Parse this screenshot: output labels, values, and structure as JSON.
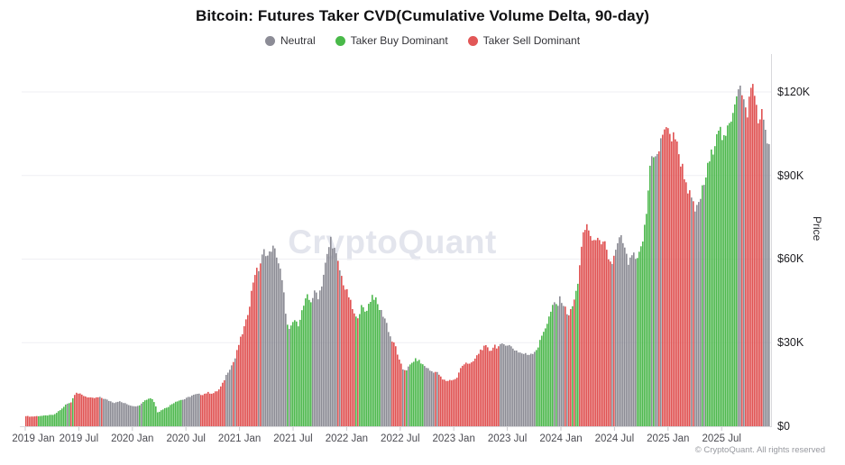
{
  "title": "Bitcoin: Futures Taker CVD(Cumulative Volume Delta, 90-day)",
  "watermark": "CryptoQuant",
  "copyright": "© CryptoQuant. All rights reserved",
  "legend": [
    {
      "label": "Neutral",
      "color": "#8c8c96"
    },
    {
      "label": "Taker Buy Dominant",
      "color": "#49b949"
    },
    {
      "label": "Taker Sell Dominant",
      "color": "#e25757"
    }
  ],
  "y_axis": {
    "label": "Price",
    "tick_labels": [
      "$0",
      "$30K",
      "$60K",
      "$90K",
      "$120K"
    ],
    "tick_values_k": [
      0,
      30,
      60,
      90,
      120
    ],
    "range_k": [
      0,
      133
    ]
  },
  "x_axis": {
    "tick_labels": [
      "2019 Jan",
      "2019 Jul",
      "2020 Jan",
      "2020 Jul",
      "2021 Jan",
      "2021 Jul",
      "2022 Jan",
      "2022 Jul",
      "2023 Jan",
      "2023 Jul",
      "2024 Jan",
      "2024 Jul",
      "2025 Jan",
      "2025 Jul"
    ],
    "tick_month_index": [
      0,
      6,
      12,
      18,
      24,
      30,
      36,
      42,
      48,
      54,
      60,
      66,
      72,
      78
    ]
  },
  "chart_data": {
    "type": "bar",
    "title": "Bitcoin: Futures Taker CVD(Cumulative Volume Delta, 90-day)",
    "x_unit": "months since 2019-01",
    "y_unit": "BTC price, USD thousands",
    "x_range_months": [
      0,
      83.4
    ],
    "regime_colors": {
      "neutral": "#8b8b94",
      "buy": "#4db84d",
      "sell": "#e05252"
    },
    "segments": [
      {
        "regime": "sell",
        "points": [
          [
            0,
            3.7
          ],
          [
            0.5,
            3.45
          ],
          [
            0.9,
            3.55
          ]
        ]
      },
      {
        "regime": "buy",
        "points": [
          [
            1.6,
            3.7
          ],
          [
            2.4,
            3.9
          ],
          [
            3.2,
            4.15
          ],
          [
            3.6,
            5.3
          ],
          [
            4.1,
            6.4
          ],
          [
            4.5,
            7.9
          ]
        ]
      },
      {
        "regime": "neutral",
        "points": [
          [
            4.8,
            8.4
          ]
        ]
      },
      {
        "regime": "buy",
        "points": [
          [
            5.1,
            8.7
          ]
        ]
      },
      {
        "regime": "sell",
        "points": [
          [
            5.35,
            10.8
          ],
          [
            5.6,
            12.4
          ],
          [
            5.9,
            11.7
          ],
          [
            6.3,
            11.2
          ],
          [
            6.8,
            10.6
          ],
          [
            7.4,
            10.0
          ],
          [
            8.2,
            10.4
          ]
        ]
      },
      {
        "regime": "neutral",
        "points": [
          [
            8.6,
            10.1
          ],
          [
            9.2,
            9.3
          ],
          [
            9.9,
            8.5
          ],
          [
            10.4,
            9.0
          ],
          [
            11.0,
            8.3
          ],
          [
            11.8,
            7.4
          ],
          [
            12.6,
            7.2
          ]
        ]
      },
      {
        "regime": "buy",
        "points": [
          [
            13.1,
            8.8
          ],
          [
            13.7,
            9.9
          ],
          [
            14.1,
            10.2
          ],
          [
            14.5,
            8.0
          ],
          [
            14.8,
            4.9
          ],
          [
            15.3,
            6.0
          ],
          [
            16.0,
            7.1
          ],
          [
            16.8,
            8.9
          ],
          [
            17.3,
            9.4
          ]
        ]
      },
      {
        "regime": "neutral",
        "points": [
          [
            17.8,
            9.7
          ],
          [
            18.6,
            11.0
          ],
          [
            19.2,
            11.5
          ]
        ]
      },
      {
        "regime": "sell",
        "points": [
          [
            19.8,
            11.4
          ],
          [
            20.4,
            12.1
          ],
          [
            21.0,
            11.8
          ],
          [
            21.6,
            12.9
          ],
          [
            22.0,
            14.8
          ],
          [
            22.3,
            17.0
          ]
        ]
      },
      {
        "regime": "neutral",
        "points": [
          [
            22.6,
            19.3
          ],
          [
            23.1,
            22.0
          ]
        ]
      },
      {
        "regime": "sell",
        "points": [
          [
            23.5,
            24.5
          ],
          [
            23.9,
            29.5
          ],
          [
            24.3,
            33.5
          ],
          [
            24.7,
            37.5
          ],
          [
            25.1,
            44.0
          ],
          [
            25.5,
            52.0
          ],
          [
            25.8,
            56.5
          ],
          [
            26.0,
            55.0
          ]
        ]
      },
      {
        "regime": "neutral",
        "points": [
          [
            26.3,
            58.5
          ],
          [
            26.8,
            63.5
          ],
          [
            27.2,
            60.5
          ],
          [
            27.6,
            64.5
          ],
          [
            28.1,
            62.0
          ],
          [
            28.6,
            55.0
          ],
          [
            29.0,
            46.0
          ],
          [
            29.3,
            36.5
          ]
        ]
      },
      {
        "regime": "buy",
        "points": [
          [
            29.6,
            34.0
          ],
          [
            30.1,
            38.5
          ],
          [
            30.5,
            36.0
          ],
          [
            30.9,
            40.5
          ],
          [
            31.3,
            44.5
          ],
          [
            31.6,
            46.5
          ],
          [
            31.9,
            44.5
          ]
        ]
      },
      {
        "regime": "neutral",
        "points": [
          [
            32.2,
            46.5
          ],
          [
            32.5,
            48.5
          ],
          [
            32.8,
            46.5
          ],
          [
            33.2,
            51.0
          ],
          [
            33.6,
            58.0
          ],
          [
            33.9,
            62.5
          ],
          [
            34.2,
            67.5
          ],
          [
            34.6,
            63.5
          ],
          [
            34.9,
            60.0
          ]
        ]
      },
      {
        "regime": "sell",
        "points": [
          [
            35.3,
            55.0
          ],
          [
            35.8,
            49.5
          ],
          [
            36.2,
            47.0
          ],
          [
            36.6,
            42.5
          ],
          [
            37.0,
            38.5
          ]
        ]
      },
      {
        "regime": "buy",
        "points": [
          [
            37.3,
            40.0
          ],
          [
            37.7,
            43.0
          ],
          [
            38.1,
            41.0
          ],
          [
            38.5,
            44.0
          ],
          [
            38.9,
            47.3
          ],
          [
            39.3,
            45.0
          ],
          [
            39.6,
            42.5
          ]
        ]
      },
      {
        "regime": "neutral",
        "points": [
          [
            40.0,
            40.5
          ],
          [
            40.4,
            38.0
          ],
          [
            40.8,
            33.0
          ]
        ]
      },
      {
        "regime": "sell",
        "points": [
          [
            41.1,
            30.5
          ],
          [
            41.5,
            28.5
          ],
          [
            41.9,
            23.5
          ],
          [
            42.3,
            20.5
          ]
        ]
      },
      {
        "regime": "neutral",
        "points": [
          [
            42.7,
            20.3
          ]
        ]
      },
      {
        "regime": "buy",
        "points": [
          [
            43.1,
            21.8
          ],
          [
            43.6,
            23.8
          ],
          [
            44.0,
            23.9
          ],
          [
            44.4,
            22.4
          ]
        ]
      },
      {
        "regime": "neutral",
        "points": [
          [
            44.9,
            21.3
          ],
          [
            45.4,
            19.8
          ],
          [
            45.9,
            19.6
          ]
        ]
      },
      {
        "regime": "sell",
        "points": [
          [
            46.3,
            18.9
          ],
          [
            46.7,
            16.8
          ],
          [
            47.2,
            16.3
          ],
          [
            47.8,
            16.7
          ],
          [
            48.3,
            16.9
          ],
          [
            48.8,
            20.8
          ],
          [
            49.3,
            23.2
          ],
          [
            49.9,
            22.0
          ],
          [
            50.5,
            24.6
          ],
          [
            51.1,
            27.8
          ],
          [
            51.6,
            28.5
          ],
          [
            52.1,
            27.0
          ],
          [
            52.6,
            29.2
          ],
          [
            52.9,
            28.4
          ]
        ]
      },
      {
        "regime": "neutral",
        "points": [
          [
            53.3,
            28.9
          ],
          [
            53.8,
            29.7
          ],
          [
            54.3,
            28.9
          ],
          [
            54.9,
            27.4
          ],
          [
            55.6,
            26.2
          ],
          [
            56.3,
            25.7
          ],
          [
            57.0,
            26.6
          ]
        ]
      },
      {
        "regime": "buy",
        "points": [
          [
            57.5,
            28.5
          ],
          [
            58.0,
            33.5
          ],
          [
            58.5,
            37.0
          ],
          [
            59.0,
            42.0
          ],
          [
            59.3,
            44.0
          ]
        ]
      },
      {
        "regime": "neutral",
        "points": [
          [
            59.7,
            43.5
          ],
          [
            60.0,
            46.3
          ],
          [
            60.4,
            43.0
          ]
        ]
      },
      {
        "regime": "sell",
        "points": [
          [
            60.7,
            41.0
          ],
          [
            61.0,
            40.0
          ],
          [
            61.3,
            42.8
          ]
        ]
      },
      {
        "regime": "buy",
        "points": [
          [
            61.6,
            46.0
          ],
          [
            61.9,
            50.5
          ]
        ]
      },
      {
        "regime": "sell",
        "points": [
          [
            62.2,
            60.0
          ],
          [
            62.5,
            67.5
          ],
          [
            62.9,
            72.5
          ],
          [
            63.3,
            69.5
          ],
          [
            63.7,
            64.5
          ],
          [
            64.1,
            70.0
          ],
          [
            64.5,
            63.5
          ],
          [
            64.9,
            66.0
          ],
          [
            65.3,
            61.0
          ],
          [
            65.7,
            58.0
          ]
        ]
      },
      {
        "regime": "neutral",
        "points": [
          [
            66.1,
            61.5
          ],
          [
            66.5,
            66.5
          ],
          [
            66.9,
            67.5
          ],
          [
            67.3,
            62.0
          ],
          [
            67.7,
            57.5
          ],
          [
            68.0,
            62.0
          ],
          [
            68.3,
            60.5
          ]
        ]
      },
      {
        "regime": "buy",
        "points": [
          [
            68.6,
            59.0
          ],
          [
            69.0,
            63.5
          ],
          [
            69.3,
            68.0
          ],
          [
            69.6,
            75.0
          ],
          [
            69.9,
            87.0
          ],
          [
            70.1,
            96.0
          ],
          [
            70.3,
            99.5
          ]
        ]
      },
      {
        "regime": "neutral",
        "points": [
          [
            70.6,
            96.0
          ],
          [
            70.9,
            97.0
          ]
        ]
      },
      {
        "regime": "sell",
        "points": [
          [
            71.2,
            101.0
          ],
          [
            71.5,
            106.0
          ],
          [
            71.8,
            108.5
          ],
          [
            72.1,
            104.5
          ],
          [
            72.4,
            103.0
          ],
          [
            72.7,
            106.5
          ],
          [
            73.0,
            101.5
          ],
          [
            73.4,
            96.0
          ],
          [
            73.8,
            91.5
          ],
          [
            74.2,
            86.0
          ],
          [
            74.5,
            83.0
          ]
        ]
      },
      {
        "regime": "neutral",
        "points": [
          [
            74.9,
            79.0
          ],
          [
            75.2,
            76.8
          ],
          [
            75.5,
            80.0
          ],
          [
            75.8,
            83.5
          ]
        ]
      },
      {
        "regime": "buy",
        "points": [
          [
            76.2,
            88.0
          ],
          [
            76.6,
            94.0
          ],
          [
            77.0,
            98.0
          ],
          [
            77.4,
            104.0
          ],
          [
            77.7,
            108.5
          ],
          [
            78.0,
            105.0
          ],
          [
            78.4,
            101.5
          ],
          [
            78.8,
            107.0
          ],
          [
            79.2,
            111.5
          ],
          [
            79.5,
            116.5
          ],
          [
            79.8,
            120.5
          ]
        ]
      },
      {
        "regime": "neutral",
        "points": [
          [
            80.0,
            123.5
          ],
          [
            80.3,
            119.5
          ]
        ]
      },
      {
        "regime": "sell",
        "points": [
          [
            80.6,
            115.0
          ],
          [
            80.9,
            111.5
          ],
          [
            81.2,
            117.5
          ],
          [
            81.5,
            123.5
          ],
          [
            81.8,
            118.5
          ],
          [
            82.1,
            112.5
          ],
          [
            82.4,
            108.5
          ],
          [
            82.6,
            112.0
          ]
        ]
      },
      {
        "regime": "neutral",
        "points": [
          [
            82.9,
            109.5
          ],
          [
            83.1,
            104.5
          ],
          [
            83.4,
            100.0
          ]
        ]
      }
    ]
  }
}
